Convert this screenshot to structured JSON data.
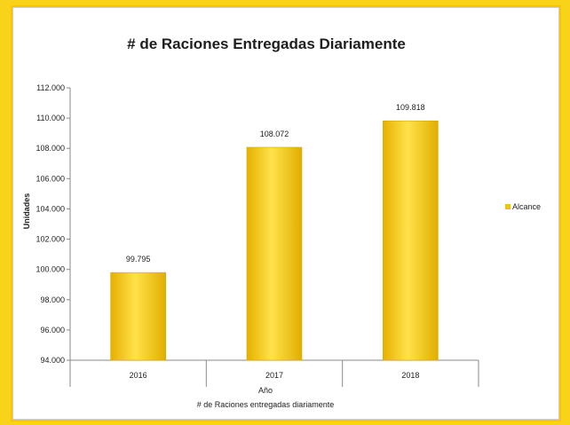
{
  "chart_data": {
    "type": "bar",
    "title": "# de Raciones Entregadas Diariamente",
    "xlabel": "Año",
    "xlabel_sub": "# de Raciones entregadas diariamente",
    "ylabel": "Unidades",
    "categories": [
      "2016",
      "2017",
      "2018"
    ],
    "series": [
      {
        "name": "Alcance",
        "values": [
          99795,
          108072,
          109818
        ]
      }
    ],
    "data_labels": [
      "99.795",
      "108.072",
      "109.818"
    ],
    "ylim": [
      94000,
      112000
    ],
    "yticks": [
      "94.000",
      "96.000",
      "98.000",
      "100.000",
      "102.000",
      "104.000",
      "106.000",
      "108.000",
      "110.000",
      "112.000"
    ],
    "grid": false,
    "legend_position": "right",
    "colors": {
      "bar": "#f4c400",
      "bar_light": "#ffe45a",
      "bar_dark": "#d9a800",
      "background": "#f9d21a"
    }
  }
}
